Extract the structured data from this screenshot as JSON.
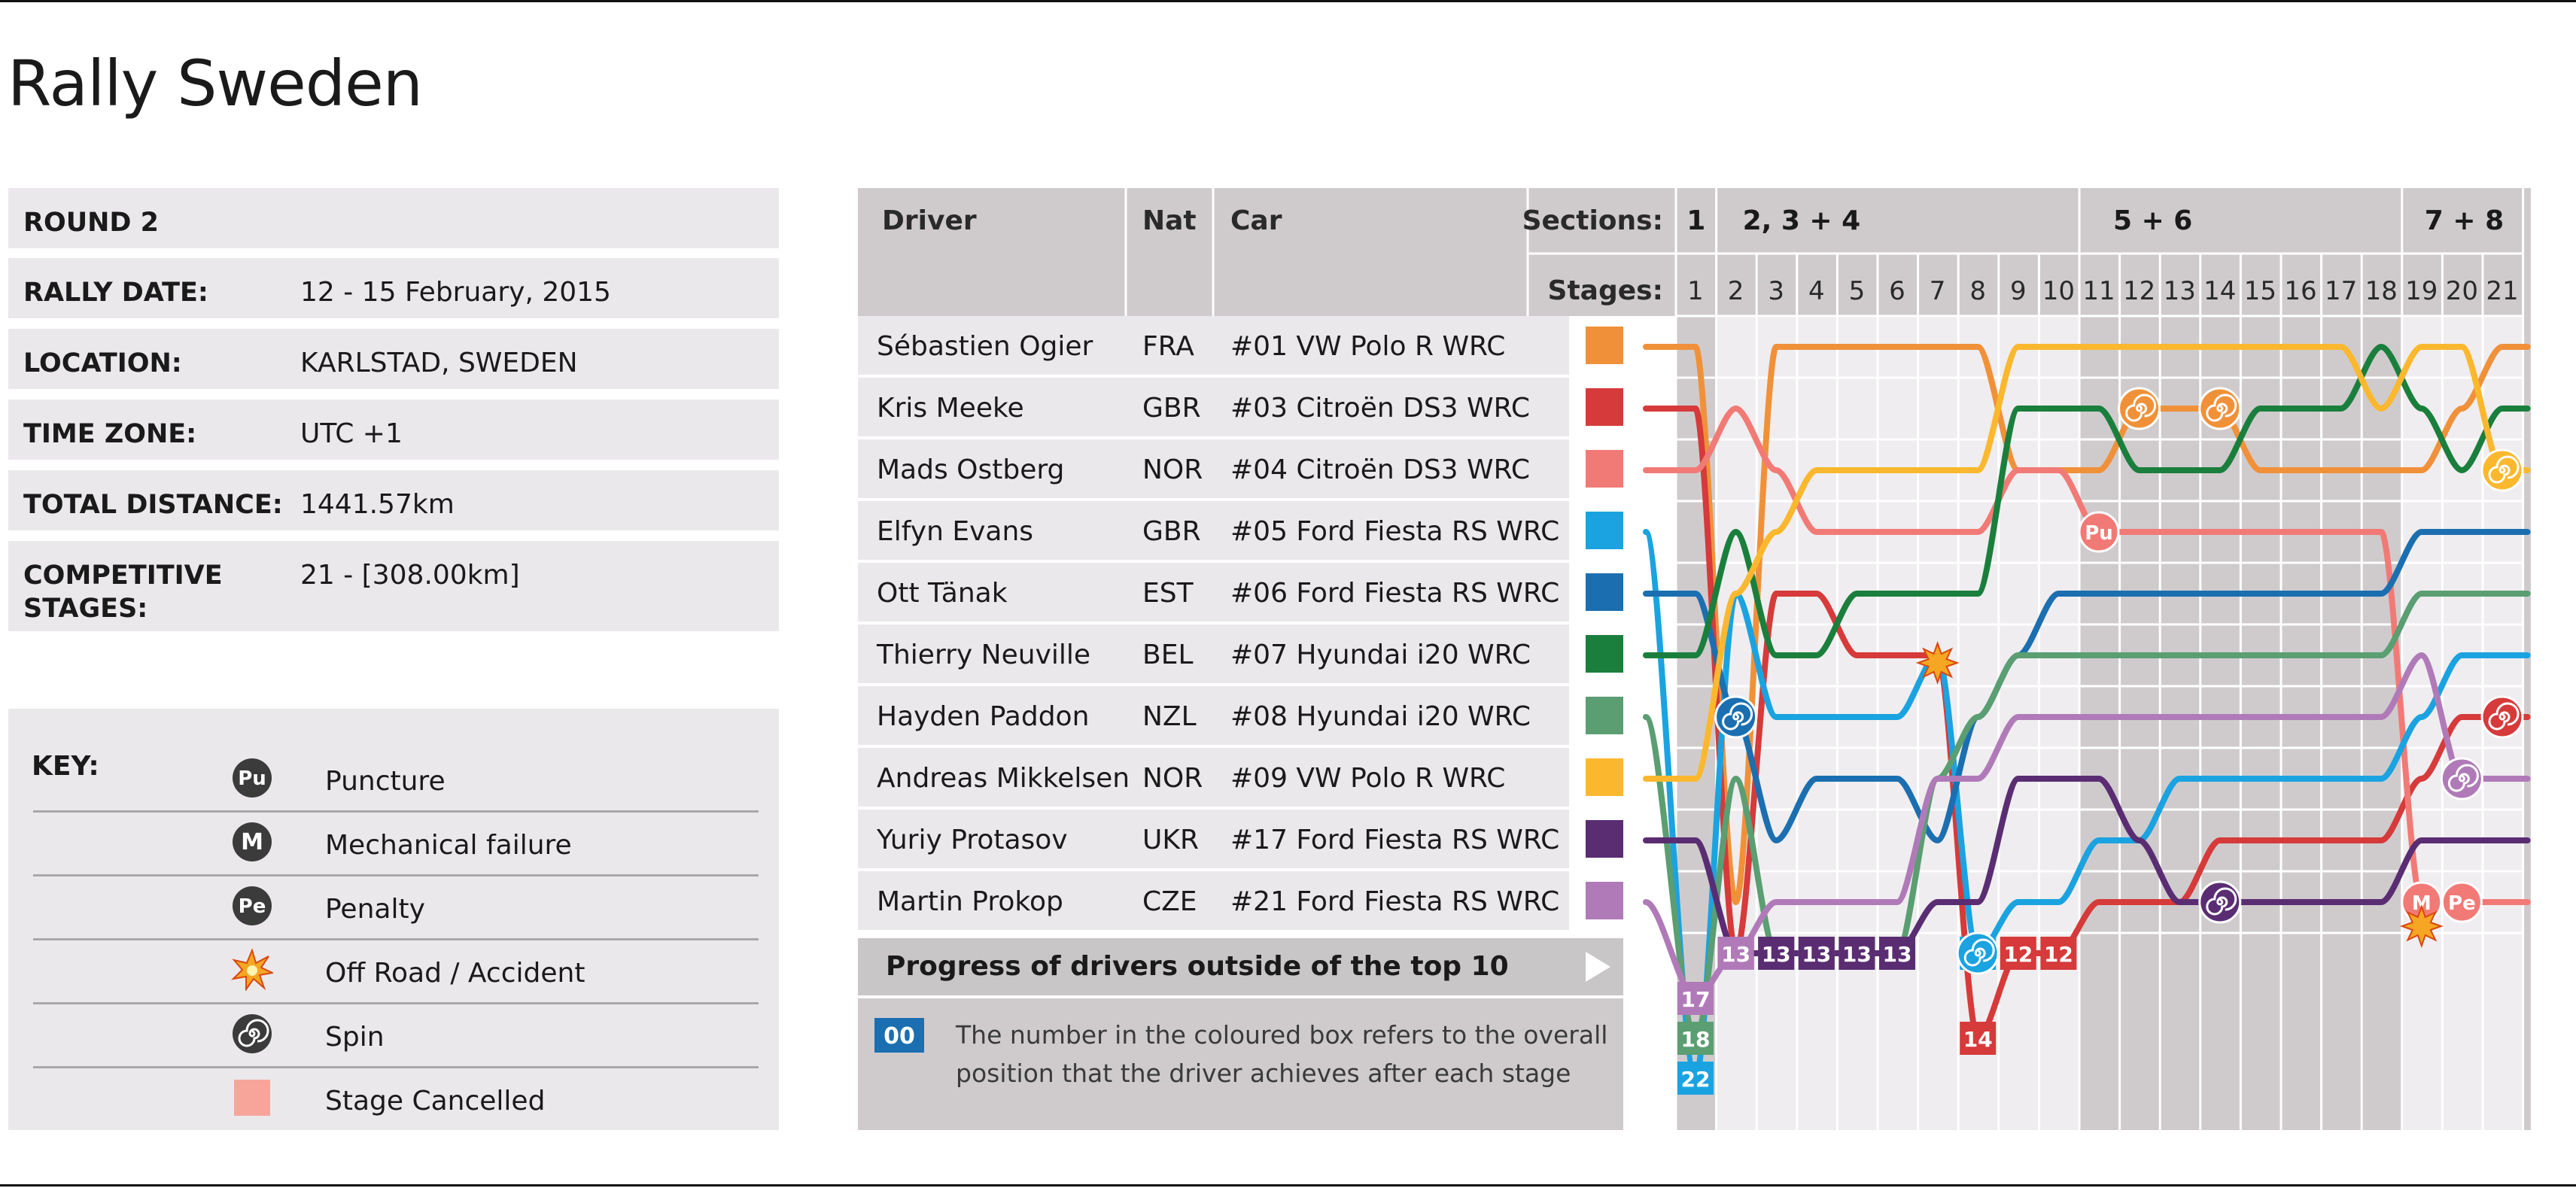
{
  "title": "Rally Sweden",
  "info": [
    {
      "label": "ROUND 2",
      "value": ""
    },
    {
      "label": "RALLY DATE:",
      "value": "12 - 15 February, 2015"
    },
    {
      "label": "LOCATION:",
      "value": "KARLSTAD, SWEDEN"
    },
    {
      "label": "TIME ZONE:",
      "value": "UTC +1"
    },
    {
      "label": "TOTAL DISTANCE:",
      "value": "1441.57km"
    },
    {
      "label": "COMPETITIVE\nSTAGES:",
      "value": "21 - [308.00km]"
    }
  ],
  "key": {
    "title": "KEY:",
    "items": [
      {
        "icon": "puncture-icon",
        "glyph": "Pu",
        "label": "Puncture"
      },
      {
        "icon": "mechanical-icon",
        "glyph": "M",
        "label": "Mechanical failure"
      },
      {
        "icon": "penalty-icon",
        "glyph": "Pe",
        "label": "Penalty"
      },
      {
        "icon": "accident-icon",
        "glyph": "",
        "label": "Off Road / Accident"
      },
      {
        "icon": "spin-icon",
        "glyph": "",
        "label": "Spin"
      },
      {
        "icon": "cancelled-icon",
        "glyph": "",
        "label": "Stage Cancelled"
      }
    ]
  },
  "chart_data": {
    "type": "line",
    "headers": {
      "driver": "Driver",
      "nat": "Nat",
      "car": "Car",
      "sections": "Sections:",
      "stages": "Stages:"
    },
    "sections": [
      {
        "label": "1",
        "stages": [
          1,
          1
        ]
      },
      {
        "label": "2, 3 + 4",
        "stages": [
          2,
          10
        ]
      },
      {
        "label": "5 + 6",
        "stages": [
          11,
          18
        ]
      },
      {
        "label": "7 + 8",
        "stages": [
          19,
          21
        ]
      }
    ],
    "x": [
      1,
      2,
      3,
      4,
      5,
      6,
      7,
      8,
      9,
      10,
      11,
      12,
      13,
      14,
      15,
      16,
      17,
      18,
      19,
      20,
      21
    ],
    "final_positions": [
      1,
      2,
      3,
      4,
      5,
      6,
      7,
      8,
      9,
      10
    ],
    "outside_top10_title": "Progress of drivers outside of the top 10",
    "legend_box_label": "00",
    "legend_note_1": "The number in the coloured box refers to the overall",
    "legend_note_2": "position that the driver achieves after each stage",
    "drivers": [
      {
        "name": "Sébastien Ogier",
        "nat": "FRA",
        "car": "#01  VW Polo R WRC",
        "color": "#f0913a",
        "positions": [
          1,
          10,
          1,
          1,
          1,
          1,
          1,
          1,
          3,
          3,
          3,
          2,
          2,
          2,
          3,
          3,
          3,
          3,
          3,
          2,
          1
        ]
      },
      {
        "name": "Kris Meeke",
        "nat": "GBR",
        "car": "#03  Citroën DS3 WRC",
        "color": "#d63a3a",
        "positions": [
          2,
          13,
          5,
          5,
          6,
          6,
          6,
          14,
          12,
          12,
          10,
          10,
          10,
          9,
          9,
          9,
          9,
          9,
          8,
          7,
          7
        ]
      },
      {
        "name": "Mads Ostberg",
        "nat": "NOR",
        "car": "#04  Citroën DS3 WRC",
        "color": "#f27a76",
        "positions": [
          3,
          2,
          3,
          4,
          4,
          4,
          4,
          4,
          3,
          3,
          4,
          4,
          4,
          4,
          4,
          4,
          4,
          4,
          10,
          10,
          10
        ]
      },
      {
        "name": "Elfyn Evans",
        "nat": "GBR",
        "car": "#05  Ford Fiesta RS WRC",
        "color": "#1aa3e0",
        "positions": [
          22,
          5,
          7,
          7,
          7,
          7,
          6,
          11,
          10,
          10,
          9,
          9,
          8,
          8,
          8,
          8,
          8,
          8,
          7,
          6,
          6
        ]
      },
      {
        "name": "Ott Tänak",
        "nat": "EST",
        "car": "#06  Ford Fiesta RS WRC",
        "color": "#1b6fb0",
        "positions": [
          5,
          7,
          9,
          8,
          8,
          8,
          9,
          7,
          6,
          5,
          5,
          5,
          5,
          5,
          5,
          5,
          5,
          5,
          4,
          4,
          4
        ]
      },
      {
        "name": "Thierry Neuville",
        "nat": "BEL",
        "car": "#07  Hyundai i20 WRC",
        "color": "#1a7f3c",
        "positions": [
          6,
          4,
          6,
          6,
          5,
          5,
          5,
          5,
          2,
          2,
          2,
          3,
          3,
          3,
          2,
          2,
          2,
          1,
          2,
          3,
          2
        ]
      },
      {
        "name": "Hayden Paddon",
        "nat": "NZL",
        "car": "#08  Hyundai i20 WRC",
        "color": "#5a9e72",
        "positions": [
          18,
          8,
          11,
          11,
          11,
          11,
          8,
          7,
          6,
          6,
          6,
          6,
          6,
          6,
          6,
          6,
          6,
          6,
          5,
          5,
          5
        ]
      },
      {
        "name": "Andreas Mikkelsen",
        "nat": "NOR",
        "car": "#09  VW Polo R WRC",
        "color": "#fbb82e",
        "positions": [
          8,
          5,
          4,
          3,
          3,
          3,
          3,
          3,
          1,
          1,
          1,
          1,
          1,
          1,
          1,
          1,
          1,
          2,
          1,
          1,
          3
        ]
      },
      {
        "name": "Yuriy Protasov",
        "nat": "UKR",
        "car": "#17  Ford Fiesta RS WRC",
        "color": "#5a2d73",
        "positions": [
          9,
          13,
          13,
          13,
          13,
          13,
          10,
          10,
          8,
          8,
          8,
          9,
          10,
          10,
          10,
          10,
          10,
          10,
          9,
          9,
          9
        ]
      },
      {
        "name": "Martin Prokop",
        "nat": "CZE",
        "car": "#21  Ford Fiesta RS WRC",
        "color": "#b07ab8",
        "positions": [
          17,
          13,
          10,
          10,
          10,
          10,
          8,
          8,
          7,
          7,
          7,
          7,
          7,
          7,
          7,
          7,
          7,
          7,
          6,
          8,
          8
        ]
      }
    ],
    "events": [
      {
        "driver": "Sébastien Ogier",
        "stage": 12,
        "type": "spin"
      },
      {
        "driver": "Sébastien Ogier",
        "stage": 14,
        "type": "spin"
      },
      {
        "driver": "Mads Ostberg",
        "stage": 11,
        "type": "puncture",
        "glyph": "Pu"
      },
      {
        "driver": "Mads Ostberg",
        "stage": 19,
        "type": "mechanical",
        "glyph": "M"
      },
      {
        "driver": "Mads Ostberg",
        "stage": 20,
        "type": "penalty",
        "glyph": "Pe"
      },
      {
        "driver": "Mads Ostberg",
        "stage": 19,
        "type": "accident"
      },
      {
        "driver": "Andreas Mikkelsen",
        "stage": 21,
        "type": "spin"
      },
      {
        "driver": "Kris Meeke",
        "stage": 21,
        "type": "spin"
      },
      {
        "driver": "Martin Prokop",
        "stage": 20,
        "type": "spin"
      },
      {
        "driver": "Yuriy Protasov",
        "stage": 14,
        "type": "spin"
      },
      {
        "driver": "Ott Tänak",
        "stage": 2,
        "type": "spin"
      },
      {
        "driver": "Elfyn Evans",
        "stage": 8,
        "type": "spin"
      },
      {
        "driver": "Kris Meeke",
        "stage": 7,
        "type": "accident"
      }
    ],
    "cancelled_stages": []
  }
}
